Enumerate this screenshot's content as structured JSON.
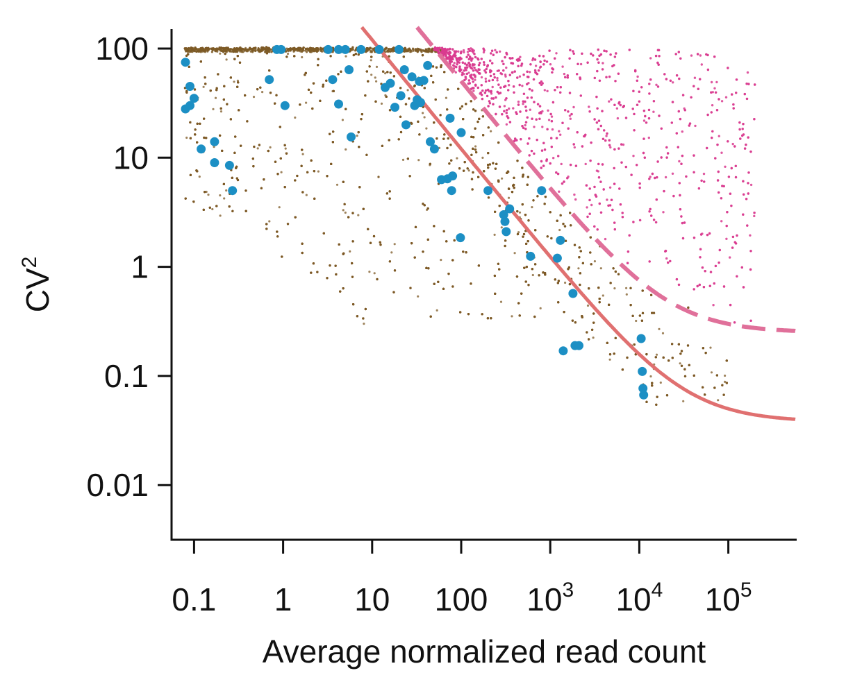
{
  "chart_data": {
    "type": "scatter",
    "title": "",
    "xlabel": "Average normalized read count",
    "ylabel": {
      "base": "CV",
      "superscript": "2"
    },
    "xscale": "log",
    "yscale": "log",
    "xlim": [
      0.075,
      600000
    ],
    "ylim": [
      0.0025,
      140
    ],
    "x_ticks": [
      {
        "value": 0.1,
        "base": "0.1",
        "sup": ""
      },
      {
        "value": 1,
        "base": "1",
        "sup": ""
      },
      {
        "value": 10,
        "base": "10",
        "sup": ""
      },
      {
        "value": 100,
        "base": "100",
        "sup": ""
      },
      {
        "value": 1000,
        "base": "10",
        "sup": "3"
      },
      {
        "value": 10000,
        "base": "10",
        "sup": "4"
      },
      {
        "value": 100000,
        "base": "10",
        "sup": "5"
      }
    ],
    "y_ticks": [
      {
        "value": 100,
        "label": "100"
      },
      {
        "value": 10,
        "label": "10"
      },
      {
        "value": 1,
        "label": "1"
      },
      {
        "value": 0.1,
        "label": "0.1"
      },
      {
        "value": 0.01,
        "label": "0.01"
      }
    ],
    "grid": false,
    "colors": {
      "background_points": "#7d5a26",
      "highlighted_points": "#d93b8f",
      "marked_genes": "#1c8fc4",
      "solid_fit": "#e07070",
      "dashed_fit": "#e0709a",
      "axis": "#111111"
    },
    "fit_lines": [
      {
        "style": "solid",
        "formula": "CV2 = 1200/x + 0.038",
        "samples": [
          [
            12,
            100
          ],
          [
            100,
            12
          ],
          [
            1000,
            1.24
          ],
          [
            10000,
            0.158
          ],
          [
            100000,
            0.05
          ],
          [
            600000,
            0.04
          ]
        ]
      },
      {
        "style": "dashed",
        "formula": "CV2 = 5000/x + 0.25",
        "samples": [
          [
            50,
            100
          ],
          [
            1000,
            5.25
          ],
          [
            10000,
            0.75
          ],
          [
            100000,
            0.3
          ],
          [
            600000,
            0.258
          ]
        ]
      }
    ],
    "point_clouds": [
      {
        "group": "background",
        "description_x_range": [
          0.075,
          100000
        ],
        "ceiling_cv2": 100
      },
      {
        "group": "highlighted",
        "description_x_range": [
          40,
          180000
        ],
        "above": "dashed fit"
      }
    ],
    "marked_genes": [
      [
        0.08,
        75
      ],
      [
        0.09,
        45
      ],
      [
        0.09,
        30
      ],
      [
        0.1,
        35
      ],
      [
        0.08,
        28
      ],
      [
        0.12,
        12
      ],
      [
        0.17,
        14
      ],
      [
        0.17,
        9
      ],
      [
        0.25,
        8.5
      ],
      [
        0.27,
        5
      ],
      [
        0.7,
        52
      ],
      [
        0.85,
        98
      ],
      [
        0.95,
        98
      ],
      [
        1.05,
        30
      ],
      [
        3.2,
        98
      ],
      [
        3.6,
        52
      ],
      [
        4.2,
        98
      ],
      [
        4.2,
        31
      ],
      [
        5,
        98
      ],
      [
        5.5,
        64
      ],
      [
        5.8,
        15.5
      ],
      [
        7.5,
        98
      ],
      [
        12,
        98
      ],
      [
        14,
        44
      ],
      [
        16,
        48
      ],
      [
        18,
        29
      ],
      [
        20,
        98
      ],
      [
        21,
        37
      ],
      [
        23,
        64
      ],
      [
        24,
        20
      ],
      [
        28,
        55
      ],
      [
        30,
        30
      ],
      [
        32,
        34
      ],
      [
        34,
        50
      ],
      [
        35,
        32
      ],
      [
        38,
        51
      ],
      [
        42,
        70
      ],
      [
        45,
        14
      ],
      [
        50,
        12
      ],
      [
        60,
        6.3
      ],
      [
        70,
        6.4
      ],
      [
        75,
        23
      ],
      [
        78,
        5
      ],
      [
        80,
        6.8
      ],
      [
        100,
        17
      ],
      [
        200,
        5
      ],
      [
        300,
        3
      ],
      [
        310,
        2.6
      ],
      [
        320,
        2.1
      ],
      [
        350,
        3.4
      ],
      [
        600,
        1.25
      ],
      [
        800,
        5
      ],
      [
        1200,
        1.2
      ],
      [
        1300,
        1.75
      ],
      [
        1400,
        0.17
      ],
      [
        1800,
        0.57
      ],
      [
        1900,
        0.19
      ],
      [
        2100,
        0.19
      ],
      [
        10500,
        0.22
      ],
      [
        10800,
        0.11
      ],
      [
        11000,
        0.077
      ],
      [
        11200,
        0.067
      ],
      [
        98,
        1.85
      ]
    ]
  }
}
